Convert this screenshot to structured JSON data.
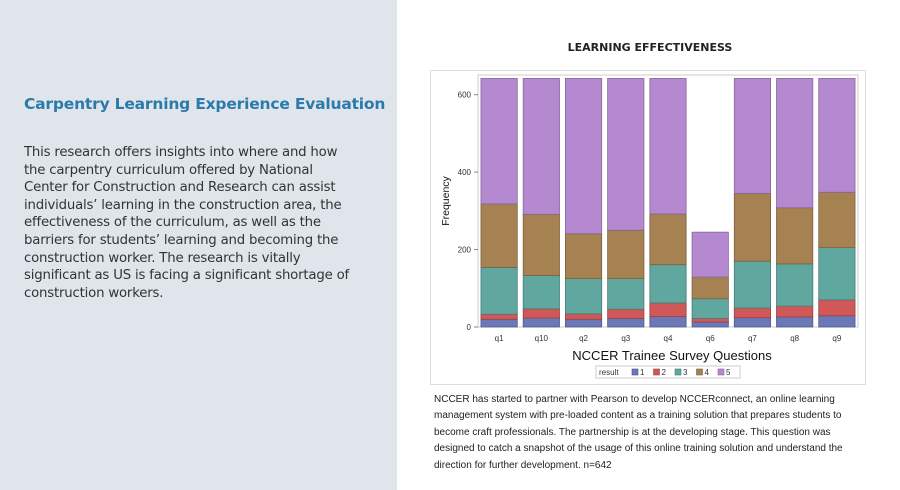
{
  "left_panel": {
    "heading": "Carpentry Learning Experience Evaluation",
    "paragraph_lines": [
      "This research offers insights into where and how",
      "the carpentry curriculum offered by National",
      "Center for Construction and Research can assist",
      "individuals’ learning in the construction area, the",
      "effectiveness of the curriculum, as well as the",
      "barriers for students’ learning and becoming the",
      "construction worker. The research is vitally",
      "significant as US is facing a significant shortage of",
      "construction workers."
    ]
  },
  "caption_lines": [
    "NCCER has started to partner with Pearson to develop NCCERconnect, an online learning",
    "management system with pre-loaded content as a training solution that prepares students to",
    "become craft professionals. The partnership is at the developing stage. This question was",
    "designed to catch a snapshot of the usage of this online training solution and understand the",
    "direction for further development.   n=642"
  ],
  "chart_data": {
    "type": "bar",
    "stacked": true,
    "title": "LEARNING EFFECTIVENESS",
    "xlabel": "NCCER Trainee Survey Questions",
    "ylabel": "Frequency",
    "ylim": [
      0,
      650
    ],
    "yticks": [
      0,
      200,
      400,
      600
    ],
    "legend_title": "result",
    "legend_position": "bottom",
    "categories": [
      "q1",
      "q10",
      "q2",
      "q3",
      "q4",
      "q6",
      "q7",
      "q8",
      "q9"
    ],
    "series": [
      {
        "name": "1",
        "color": "#6b78b8",
        "values": [
          20,
          23,
          20,
          22,
          27,
          13,
          24,
          26,
          29
        ]
      },
      {
        "name": "2",
        "color": "#d05858",
        "values": [
          13,
          24,
          14,
          24,
          35,
          9,
          25,
          28,
          41
        ]
      },
      {
        "name": "3",
        "color": "#5fa79f",
        "values": [
          121,
          86,
          91,
          79,
          99,
          51,
          121,
          109,
          135
        ]
      },
      {
        "name": "4",
        "color": "#a68152",
        "values": [
          164,
          158,
          116,
          125,
          131,
          56,
          175,
          145,
          143
        ]
      },
      {
        "name": "5",
        "color": "#b589cf",
        "values": [
          324,
          351,
          401,
          392,
          350,
          116,
          297,
          334,
          294
        ]
      }
    ]
  }
}
